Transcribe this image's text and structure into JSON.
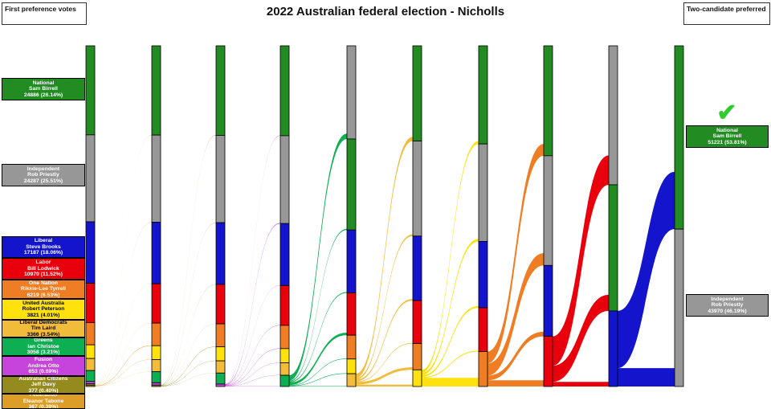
{
  "title": "2022 Australian federal election - Nicholls",
  "left_header": "First preference votes",
  "right_header": "Two-candidate preferred",
  "winner_checkmark": "✔",
  "colors": {
    "NAT": "#228B22",
    "IND": "#979797",
    "LIB": "#1414CC",
    "ALP": "#E8000D",
    "ON": "#EF7D23",
    "UAP": "#FFE10E",
    "LDP": "#F2BC3B",
    "GRN": "#0EAE52",
    "FUS": "#C644DC",
    "CIT": "#958A1E",
    "FED": "#DD9E27",
    "checkmark": "#2FCB2F"
  },
  "first_preferences": [
    {
      "id": "NAT",
      "party": "National",
      "candidate": "Sam Birrell",
      "votes_label": "24886 (26.14%)",
      "text_color": "#ffffff"
    },
    {
      "id": "IND",
      "party": "Independent",
      "candidate": "Rob Priestly",
      "votes_label": "24287 (25.51%)",
      "text_color": "#ffffff"
    },
    {
      "id": "LIB",
      "party": "Liberal",
      "candidate": "Steve Brooks",
      "votes_label": "17187 (18.06%)",
      "text_color": "#ffffff"
    },
    {
      "id": "ALP",
      "party": "Labor",
      "candidate": "Bill Lodwick",
      "votes_label": "10970 (11.52%)",
      "text_color": "#ffffff"
    },
    {
      "id": "ON",
      "party": "One Nation",
      "candidate": "Rikkie-Lee Tyrrell",
      "votes_label": "6219 (6.53%)",
      "text_color": "#ffffff"
    },
    {
      "id": "UAP",
      "party": "United Australia",
      "candidate": "Robert Peterson",
      "votes_label": "3821 (4.01%)",
      "text_color": "#000000"
    },
    {
      "id": "LDP",
      "party": "Liberal Democrats",
      "candidate": "Tim Laird",
      "votes_label": "3366 (3.54%)",
      "text_color": "#000000"
    },
    {
      "id": "GRN",
      "party": "Greens",
      "candidate": "Ian Christoe",
      "votes_label": "3058 (3.21%)",
      "text_color": "#ffffff"
    },
    {
      "id": "FUS",
      "party": "Fusion",
      "candidate": "Andrea Otto",
      "votes_label": "653 (0.69%)",
      "text_color": "#ffffff"
    },
    {
      "id": "CIT",
      "party": "Australian Citizens",
      "candidate": "Jeff Davy",
      "votes_label": "377 (0.40%)",
      "text_color": "#ffffff"
    },
    {
      "id": "FED",
      "party": "Federation",
      "candidate": "Eleanor Tabone",
      "votes_label": "367 (0.39%)",
      "text_color": "#ffffff"
    }
  ],
  "two_candidate_preferred": [
    {
      "id": "NAT",
      "party": "National",
      "candidate": "Sam Birrell",
      "votes_label": "51221 (53.81%)",
      "text_color": "#ffffff",
      "winner": true
    },
    {
      "id": "IND",
      "party": "Independent",
      "candidate": "Rob Priestly",
      "votes_label": "43970 (46.19%)",
      "text_color": "#ffffff",
      "winner": false
    }
  ],
  "chart_data": {
    "type": "sankey",
    "total_votes": 95191,
    "rounds": [
      [
        [
          "NAT",
          24886
        ],
        [
          "IND",
          24287
        ],
        [
          "LIB",
          17187
        ],
        [
          "ALP",
          10970
        ],
        [
          "ON",
          6219
        ],
        [
          "UAP",
          3821
        ],
        [
          "LDP",
          3366
        ],
        [
          "GRN",
          3058
        ],
        [
          "FUS",
          653
        ],
        [
          "CIT",
          377
        ],
        [
          "FED",
          367
        ]
      ],
      [
        [
          "NAT",
          24946
        ],
        [
          "IND",
          24327
        ],
        [
          "LIB",
          17217
        ],
        [
          "ALP",
          10990
        ],
        [
          "ON",
          6319
        ],
        [
          "UAP",
          3881
        ],
        [
          "LDP",
          3386
        ],
        [
          "GRN",
          3068
        ],
        [
          "FUS",
          668
        ],
        [
          "CIT",
          389
        ]
      ],
      [
        [
          "NAT",
          25026
        ],
        [
          "IND",
          24387
        ],
        [
          "LIB",
          17257
        ],
        [
          "ALP",
          11020
        ],
        [
          "ON",
          6419
        ],
        [
          "UAP",
          3921
        ],
        [
          "LDP",
          3406
        ],
        [
          "GRN",
          3077
        ],
        [
          "FUS",
          678
        ]
      ],
      [
        [
          "NAT",
          25126
        ],
        [
          "IND",
          24537
        ],
        [
          "LIB",
          17327
        ],
        [
          "ALP",
          11120
        ],
        [
          "ON",
          6499
        ],
        [
          "UAP",
          3981
        ],
        [
          "LDP",
          3466
        ],
        [
          "GRN",
          3135
        ]
      ],
      [
        [
          "IND",
          26037
        ],
        [
          "NAT",
          25426
        ],
        [
          "LIB",
          17577
        ],
        [
          "ALP",
          11820
        ],
        [
          "ON",
          6649
        ],
        [
          "UAP",
          4116
        ],
        [
          "LDP",
          3566
        ]
      ],
      [
        [
          "NAT",
          26626
        ],
        [
          "IND",
          26537
        ],
        [
          "LIB",
          18027
        ],
        [
          "ALP",
          12000
        ],
        [
          "ON",
          7349
        ],
        [
          "UAP",
          4652
        ]
      ],
      [
        [
          "NAT",
          27426
        ],
        [
          "IND",
          27237
        ],
        [
          "LIB",
          18527
        ],
        [
          "ALP",
          12250
        ],
        [
          "ON",
          9751
        ]
      ],
      [
        [
          "NAT",
          30726
        ],
        [
          "IND",
          30637
        ],
        [
          "LIB",
          19828
        ],
        [
          "ALP",
          14000
        ]
      ],
      [
        [
          "IND",
          38837
        ],
        [
          "NAT",
          35226
        ],
        [
          "LIB",
          21128
        ]
      ],
      [
        [
          "NAT",
          51221
        ],
        [
          "IND",
          43970
        ]
      ]
    ],
    "flows": [
      {
        "eliminated": "FED",
        "to": {
          "NAT": 60,
          "IND": 40,
          "LIB": 30,
          "ALP": 20,
          "ON": 100,
          "UAP": 60,
          "LDP": 20,
          "GRN": 10,
          "FUS": 15,
          "CIT": 12
        }
      },
      {
        "eliminated": "CIT",
        "to": {
          "NAT": 80,
          "IND": 60,
          "LIB": 40,
          "ALP": 30,
          "ON": 100,
          "UAP": 40,
          "LDP": 20,
          "GRN": 9,
          "FUS": 10
        }
      },
      {
        "eliminated": "FUS",
        "to": {
          "NAT": 100,
          "IND": 150,
          "LIB": 70,
          "ALP": 100,
          "ON": 80,
          "UAP": 60,
          "LDP": 60,
          "GRN": 58
        }
      },
      {
        "eliminated": "GRN",
        "to": {
          "NAT": 300,
          "IND": 1500,
          "LIB": 250,
          "ALP": 700,
          "ON": 150,
          "UAP": 135,
          "LDP": 100
        }
      },
      {
        "eliminated": "LDP",
        "to": {
          "NAT": 1200,
          "IND": 500,
          "LIB": 450,
          "ALP": 180,
          "ON": 700,
          "UAP": 536
        }
      },
      {
        "eliminated": "UAP",
        "to": {
          "NAT": 800,
          "IND": 700,
          "LIB": 500,
          "ALP": 250,
          "ON": 2402
        }
      },
      {
        "eliminated": "ON",
        "to": {
          "NAT": 3300,
          "IND": 3400,
          "LIB": 1301,
          "ALP": 1750
        }
      },
      {
        "eliminated": "ALP",
        "to": {
          "NAT": 4500,
          "IND": 8200,
          "LIB": 1300
        }
      },
      {
        "eliminated": "LIB",
        "to": {
          "NAT": 15995,
          "IND": 5133
        }
      }
    ]
  }
}
